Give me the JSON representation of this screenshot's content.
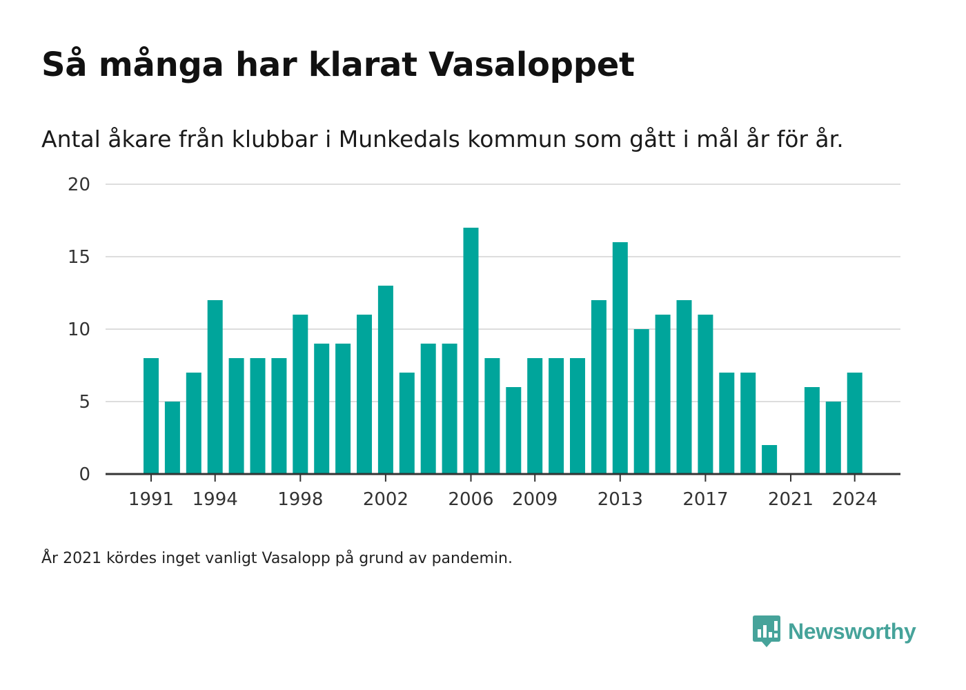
{
  "header": {
    "title": "Så många har klarat Vasaloppet",
    "subtitle": "Antal åkare från klubbar i Munkedals kommun som gått i mål år för år."
  },
  "footer": {
    "note": "År 2021 kördes inget vanligt Vasalopp på grund av pandemin.",
    "brand": "Newsworthy"
  },
  "colors": {
    "bar": "#00a59b",
    "grid": "#dddddd",
    "axis": "#333333",
    "brand": "#46a39a"
  },
  "chart_data": {
    "type": "bar",
    "categories": [
      1991,
      1992,
      1993,
      1994,
      1995,
      1996,
      1997,
      1998,
      1999,
      2000,
      2001,
      2002,
      2003,
      2004,
      2005,
      2006,
      2007,
      2008,
      2009,
      2010,
      2011,
      2012,
      2013,
      2014,
      2015,
      2016,
      2017,
      2018,
      2019,
      2020,
      2021,
      2022,
      2023,
      2024
    ],
    "values": [
      8,
      5,
      7,
      12,
      8,
      8,
      8,
      11,
      9,
      9,
      11,
      13,
      7,
      9,
      9,
      17,
      8,
      6,
      8,
      8,
      8,
      12,
      16,
      10,
      11,
      12,
      11,
      7,
      7,
      2,
      0,
      6,
      5,
      7
    ],
    "x_tick_labels": [
      "1991",
      "1994",
      "1998",
      "2002",
      "2006",
      "2009",
      "2013",
      "2017",
      "2021",
      "2024"
    ],
    "y_ticks": [
      0,
      5,
      10,
      15,
      20
    ],
    "ylim": [
      0,
      20
    ],
    "grid": true,
    "legend": "none"
  }
}
